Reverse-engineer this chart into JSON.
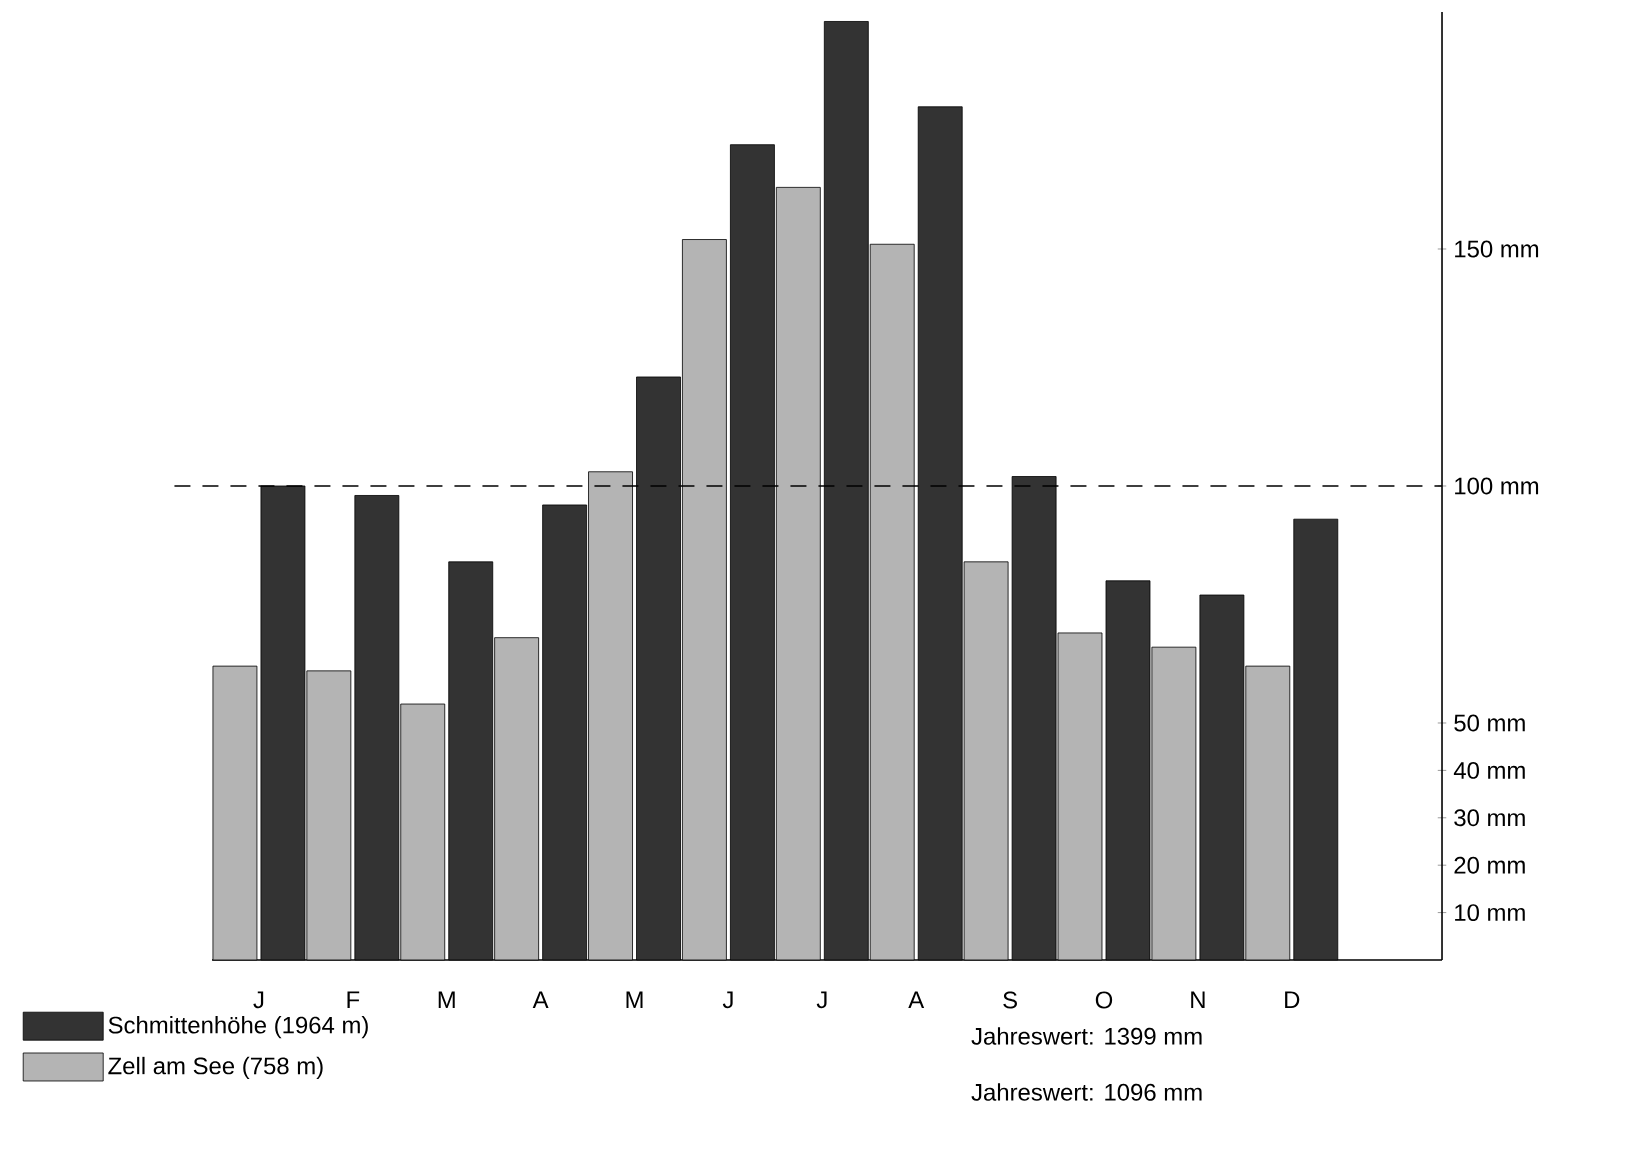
{
  "chart_data": {
    "type": "bar",
    "categories": [
      "J",
      "F",
      "M",
      "A",
      "M",
      "J",
      "J",
      "A",
      "S",
      "O",
      "N",
      "D"
    ],
    "series": [
      {
        "name": "Schmittenhöhe (1964 m)",
        "color": "#333333",
        "values": [
          100,
          98,
          84,
          96,
          123,
          172,
          198,
          180,
          102,
          80,
          77,
          93
        ]
      },
      {
        "name": "Zell am See (758 m)",
        "color": "#b4b4b4",
        "values": [
          62,
          61,
          54,
          68,
          103,
          152,
          163,
          151,
          84,
          69,
          66,
          62
        ]
      }
    ],
    "ylim": [
      0,
      200
    ],
    "yticks": [
      {
        "value": 10,
        "label": "10 mm"
      },
      {
        "value": 20,
        "label": "20 mm"
      },
      {
        "value": 30,
        "label": "30 mm"
      },
      {
        "value": 40,
        "label": "40 mm"
      },
      {
        "value": 50,
        "label": "50 mm"
      },
      {
        "value": 100,
        "label": "100 mm"
      },
      {
        "value": 150,
        "label": "150 mm"
      }
    ],
    "ref_lines": [
      {
        "axis": "y",
        "value": 100,
        "line_style": "dashed"
      }
    ],
    "legend": "bottom",
    "annotations": [
      "Jahreswert: 1399 mm",
      "Jahreswert: 1096 mm"
    ]
  }
}
